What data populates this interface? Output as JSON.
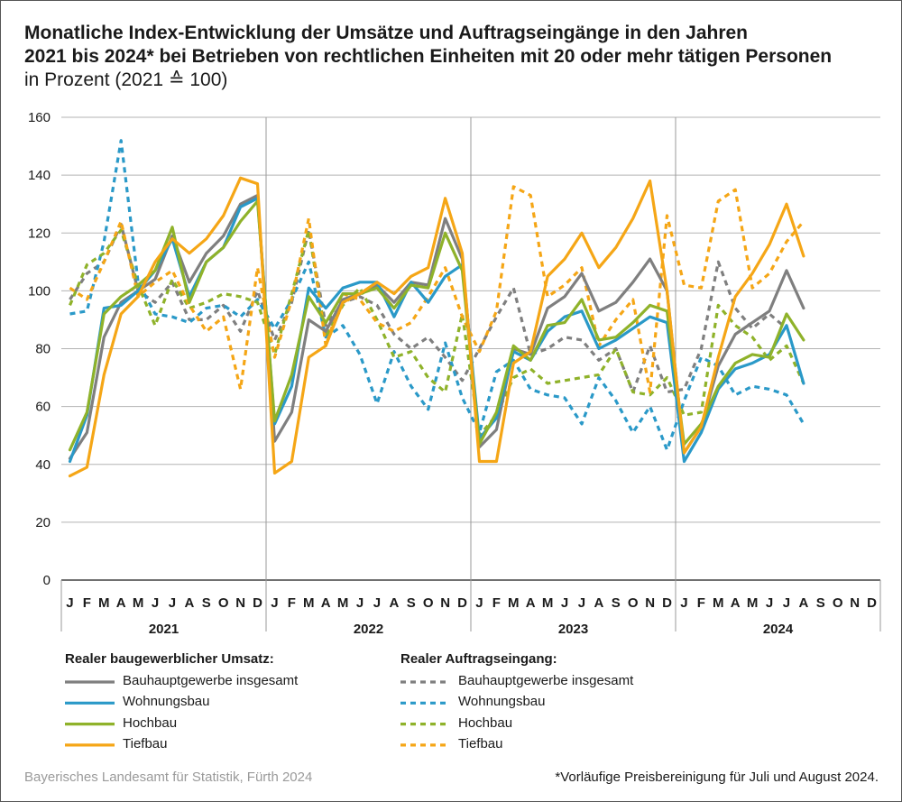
{
  "title": {
    "line1": "Monatliche Index-Entwicklung der Umsätze und Auftragseingänge in den Jahren",
    "line2": "2021 bis 2024* bei Betrieben von rechtlichen Einheiten mit 20 oder mehr tätigen Personen",
    "line3": "in Prozent (2021 ≙ 100)"
  },
  "legend": {
    "heading_left": "Realer baugewerblicher Umsatz:",
    "heading_right": "Realer Auftragseingang:"
  },
  "footer": {
    "source": "Bayerisches Landesamt für Statistik, Fürth 2024",
    "note": "*Vorläufige Preisbereinigung für Juli und August 2024."
  },
  "chart_data": {
    "type": "line",
    "ylim": [
      0,
      160
    ],
    "yticks": [
      0,
      20,
      40,
      60,
      80,
      100,
      120,
      140,
      160
    ],
    "grid": true,
    "month_labels": [
      "J",
      "F",
      "M",
      "A",
      "M",
      "J",
      "J",
      "A",
      "S",
      "O",
      "N",
      "D"
    ],
    "years": [
      "2021",
      "2022",
      "2023",
      "2024"
    ],
    "colors": {
      "grau": "#7f7f7f",
      "blau": "#2a99c8",
      "gruen": "#8fb22a",
      "orange": "#f5a616"
    },
    "series": [
      {
        "name": "Bauhauptgewerbe insgesamt",
        "group": "Realer baugewerblicher Umsatz",
        "color": "#7f7f7f",
        "dashed": false,
        "values": [
          42,
          51,
          84,
          96,
          100,
          104,
          119,
          103,
          113,
          119,
          130,
          133,
          48,
          58,
          90,
          86,
          97,
          99,
          102,
          96,
          103,
          102,
          125,
          111,
          46,
          52,
          80,
          78,
          94,
          98,
          106,
          93,
          96,
          103,
          111,
          100,
          44,
          53,
          74,
          85,
          89,
          93,
          107,
          94,
          null,
          null,
          null,
          null
        ]
      },
      {
        "name": "Wohnungsbau",
        "group": "Realer baugewerblicher Umsatz",
        "color": "#2a99c8",
        "dashed": false,
        "values": [
          41,
          57,
          94,
          95,
          100,
          107,
          118,
          98,
          110,
          115,
          129,
          132,
          54,
          67,
          101,
          94,
          101,
          103,
          103,
          91,
          103,
          96,
          105,
          109,
          49,
          56,
          79,
          76,
          86,
          91,
          93,
          80,
          83,
          87,
          91,
          89,
          41,
          51,
          66,
          73,
          75,
          78,
          88,
          68,
          null,
          null,
          null,
          null
        ]
      },
      {
        "name": "Hochbau",
        "group": "Realer baugewerblicher Umsatz",
        "color": "#8fb22a",
        "dashed": false,
        "values": [
          45,
          58,
          92,
          98,
          102,
          107,
          122,
          96,
          110,
          115,
          124,
          131,
          55,
          71,
          98,
          89,
          99,
          99,
          101,
          94,
          102,
          101,
          120,
          107,
          47,
          58,
          81,
          76,
          88,
          89,
          97,
          83,
          84,
          89,
          95,
          93,
          47,
          54,
          67,
          75,
          78,
          77,
          92,
          83,
          null,
          null,
          null,
          null
        ]
      },
      {
        "name": "Tiefbau",
        "group": "Realer baugewerblicher Umsatz",
        "color": "#f5a616",
        "dashed": false,
        "values": [
          36,
          39,
          71,
          92,
          98,
          110,
          118,
          113,
          118,
          126,
          139,
          137,
          37,
          41,
          77,
          81,
          96,
          99,
          103,
          99,
          105,
          108,
          132,
          113,
          41,
          41,
          75,
          79,
          105,
          111,
          120,
          108,
          115,
          125,
          138,
          100,
          44,
          53,
          77,
          98,
          106,
          116,
          130,
          112,
          null,
          null,
          null,
          null
        ]
      },
      {
        "name": "Bauhauptgewerbe insgesamt",
        "group": "Realer Auftragseingang",
        "color": "#7f7f7f",
        "dashed": true,
        "values": [
          97,
          106,
          110,
          123,
          100,
          96,
          103,
          90,
          90,
          95,
          86,
          100,
          83,
          96,
          121,
          88,
          96,
          98,
          95,
          85,
          80,
          84,
          77,
          69,
          80,
          91,
          101,
          78,
          80,
          84,
          83,
          76,
          80,
          65,
          81,
          65,
          66,
          80,
          110,
          94,
          87,
          92,
          87,
          null,
          null,
          null,
          null,
          null
        ]
      },
      {
        "name": "Wohnungsbau",
        "group": "Realer Auftragseingang",
        "color": "#2a99c8",
        "dashed": true,
        "values": [
          92,
          93,
          117,
          152,
          103,
          92,
          91,
          89,
          94,
          95,
          91,
          97,
          87,
          97,
          110,
          84,
          88,
          78,
          61,
          79,
          67,
          59,
          82,
          63,
          51,
          72,
          76,
          66,
          64,
          63,
          54,
          70,
          62,
          51,
          60,
          45,
          62,
          77,
          74,
          64,
          67,
          66,
          64,
          54,
          null,
          null,
          null,
          null
        ]
      },
      {
        "name": "Hochbau",
        "group": "Realer Auftragseingang",
        "color": "#8fb22a",
        "dashed": true,
        "values": [
          95,
          109,
          113,
          121,
          102,
          88,
          104,
          94,
          96,
          99,
          98,
          96,
          78,
          99,
          121,
          84,
          95,
          101,
          90,
          77,
          79,
          70,
          65,
          92,
          50,
          57,
          70,
          73,
          68,
          69,
          70,
          71,
          80,
          65,
          64,
          70,
          57,
          58,
          95,
          88,
          84,
          76,
          81,
          68,
          null,
          null,
          null,
          null
        ]
      },
      {
        "name": "Tiefbau",
        "group": "Realer Auftragseingang",
        "color": "#f5a616",
        "dashed": true,
        "values": [
          101,
          97,
          110,
          124,
          98,
          103,
          107,
          95,
          86,
          91,
          66,
          108,
          77,
          97,
          125,
          81,
          99,
          97,
          89,
          86,
          89,
          98,
          108,
          91,
          79,
          93,
          136,
          133,
          98,
          102,
          108,
          81,
          90,
          97,
          65,
          126,
          102,
          101,
          131,
          135,
          101,
          106,
          117,
          124,
          null,
          null,
          null,
          null
        ]
      }
    ]
  }
}
